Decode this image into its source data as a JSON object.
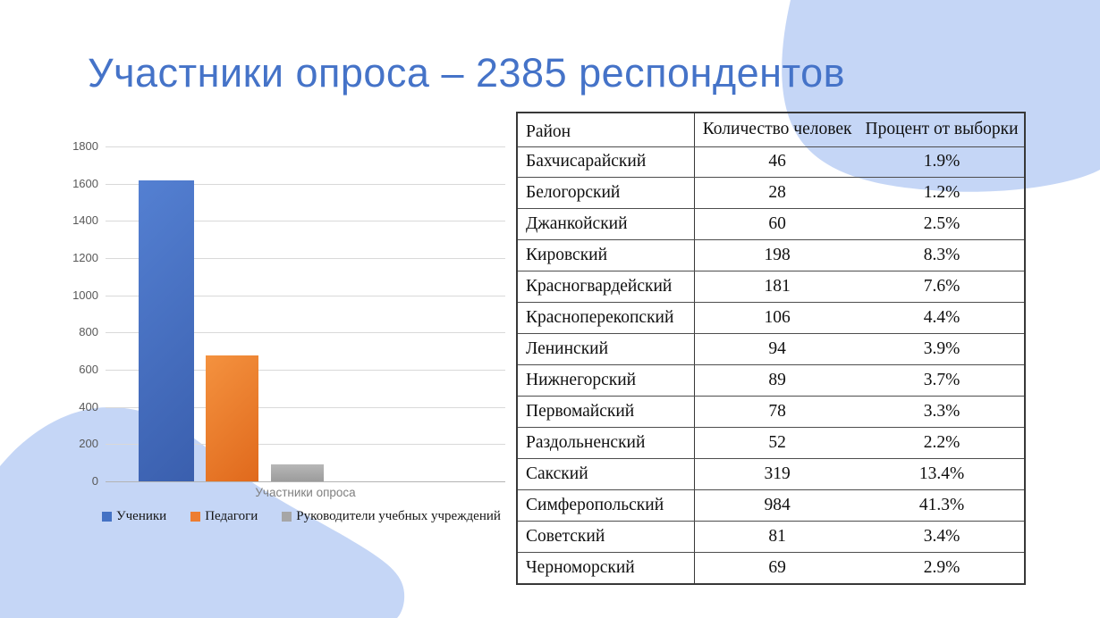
{
  "slide": {
    "title": "Участники опроса – 2385 респондентов"
  },
  "chart_data": [
    {
      "type": "bar",
      "title": "",
      "categories": [
        "Участники опроса"
      ],
      "xlabel": "Участники опроса",
      "ylabel": "",
      "ylim": [
        0,
        1800
      ],
      "yticks": [
        0,
        200,
        400,
        600,
        800,
        1000,
        1200,
        1400,
        1600,
        1800
      ],
      "grid": true,
      "legend_position": "bottom",
      "series": [
        {
          "name": "Ученики",
          "values": [
            1620
          ],
          "color": "#4472c4"
        },
        {
          "name": "Педагоги",
          "values": [
            675
          ],
          "color": "#ed7d31"
        },
        {
          "name": "Руководители учебных учреждений",
          "values": [
            90
          ],
          "color": "#a6a6a6"
        }
      ]
    },
    {
      "type": "table",
      "headers": [
        "Район",
        "Количество человек",
        "Процент от выборки"
      ],
      "rows": [
        [
          "Бахчисарайский",
          "46",
          "1.9%"
        ],
        [
          "Белогорский",
          "28",
          "1.2%"
        ],
        [
          "Джанкойский",
          "60",
          "2.5%"
        ],
        [
          "Кировский",
          "198",
          "8.3%"
        ],
        [
          "Красногвардейский",
          "181",
          "7.6%"
        ],
        [
          "Красноперекопский",
          "106",
          "4.4%"
        ],
        [
          "Ленинский",
          "94",
          "3.9%"
        ],
        [
          "Нижнегорский",
          "89",
          "3.7%"
        ],
        [
          "Первомайский",
          "78",
          "3.3%"
        ],
        [
          "Раздольненский",
          "52",
          "2.2%"
        ],
        [
          "Сакский",
          "319",
          "13.4%"
        ],
        [
          "Симферопольский",
          "984",
          "41.3%"
        ],
        [
          "Советский",
          "81",
          "3.4%"
        ],
        [
          "Черноморский",
          "69",
          "2.9%"
        ]
      ]
    }
  ],
  "colors": {
    "title_text": "#4573c8",
    "background_blob": "#c5d6f6",
    "gridline": "#d9d9d9",
    "axis_text": "#595959",
    "table_border": "#383838",
    "bar_blue": "#4472c4",
    "bar_orange": "#ed7d31",
    "bar_gray": "#a6a6a6"
  }
}
